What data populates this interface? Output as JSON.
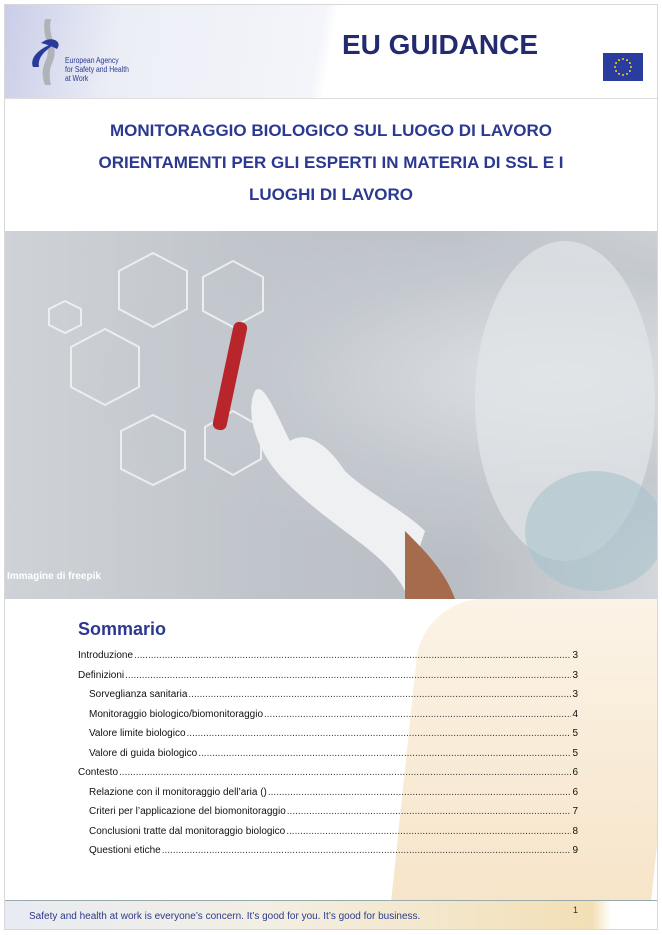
{
  "header": {
    "logo_text": [
      "European Agency",
      "for Safety and Health",
      "at Work"
    ],
    "title": "EU GUIDANCE",
    "flag_icon": "eu-flag-icon"
  },
  "document": {
    "title_line1": "MONITORAGGIO BIOLOGICO SUL LUOGO DI LAVORO",
    "title_line2": "ORIENTAMENTI PER GLI ESPERTI IN MATERIA DI SSL E I",
    "title_line3": "LUOGHI DI LAVORO"
  },
  "image": {
    "credit": "Immagine di freepik"
  },
  "toc": {
    "heading": "Sommario",
    "items": [
      {
        "label": "Introduzione",
        "page": "3",
        "level": 1
      },
      {
        "label": "Definizioni",
        "page": "3",
        "level": 1
      },
      {
        "label": "Sorveglianza sanitaria",
        "page": "3",
        "level": 2
      },
      {
        "label": "Monitoraggio biologico/biomonitoraggio",
        "page": "4",
        "level": 2
      },
      {
        "label": "Valore limite biologico",
        "page": "5",
        "level": 2
      },
      {
        "label": "Valore di guida biologico",
        "page": "5",
        "level": 2
      },
      {
        "label": "Contesto",
        "page": "6",
        "level": 1
      },
      {
        "label": "Relazione con il monitoraggio dell’aria ()",
        "page": "6",
        "level": 2
      },
      {
        "label": "Criteri per l’applicazione del biomonitoraggio",
        "page": "7",
        "level": 2
      },
      {
        "label": "Conclusioni tratte dal monitoraggio biologico",
        "page": "8",
        "level": 2
      },
      {
        "label": "Questioni etiche",
        "page": "9",
        "level": 2
      }
    ]
  },
  "footer": {
    "slogan": "Safety and health at work is everyone’s concern. It’s good for you. It’s good for business.",
    "page_number": "1"
  }
}
